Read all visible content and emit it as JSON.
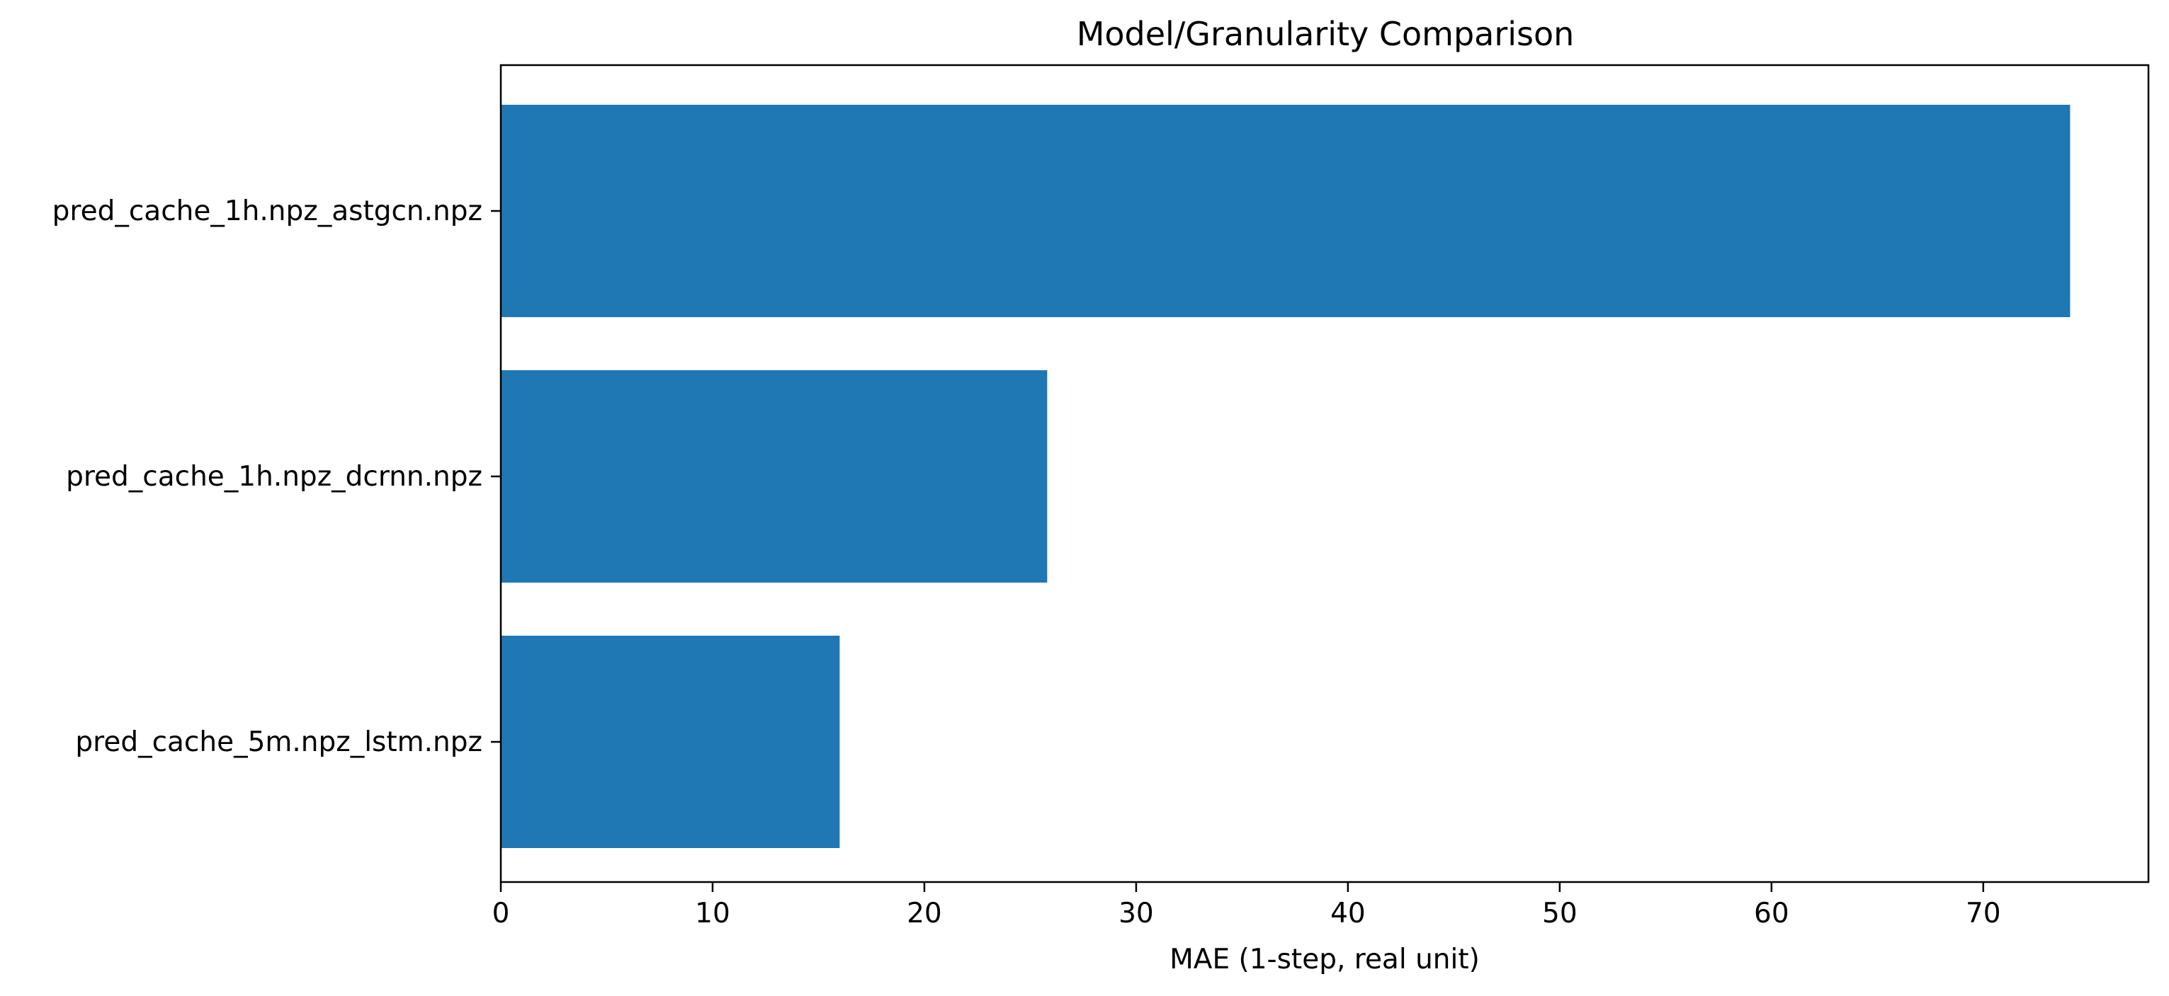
{
  "chart_data": {
    "type": "bar",
    "orientation": "horizontal",
    "title": "Model/Granularity Comparison",
    "xlabel": "MAE (1-step, real unit)",
    "ylabel": "",
    "categories": [
      "pred_cache_1h.npz_astgcn.npz",
      "pred_cache_1h.npz_dcrnn.npz",
      "pred_cache_5m.npz_lstm.npz"
    ],
    "values": [
      74.1,
      25.8,
      16.0
    ],
    "xlim": [
      0,
      77.8
    ],
    "xticks": [
      0,
      10,
      20,
      30,
      40,
      50,
      60,
      70
    ],
    "grid": false,
    "legend": "none",
    "bar_color": "#1f77b4"
  }
}
